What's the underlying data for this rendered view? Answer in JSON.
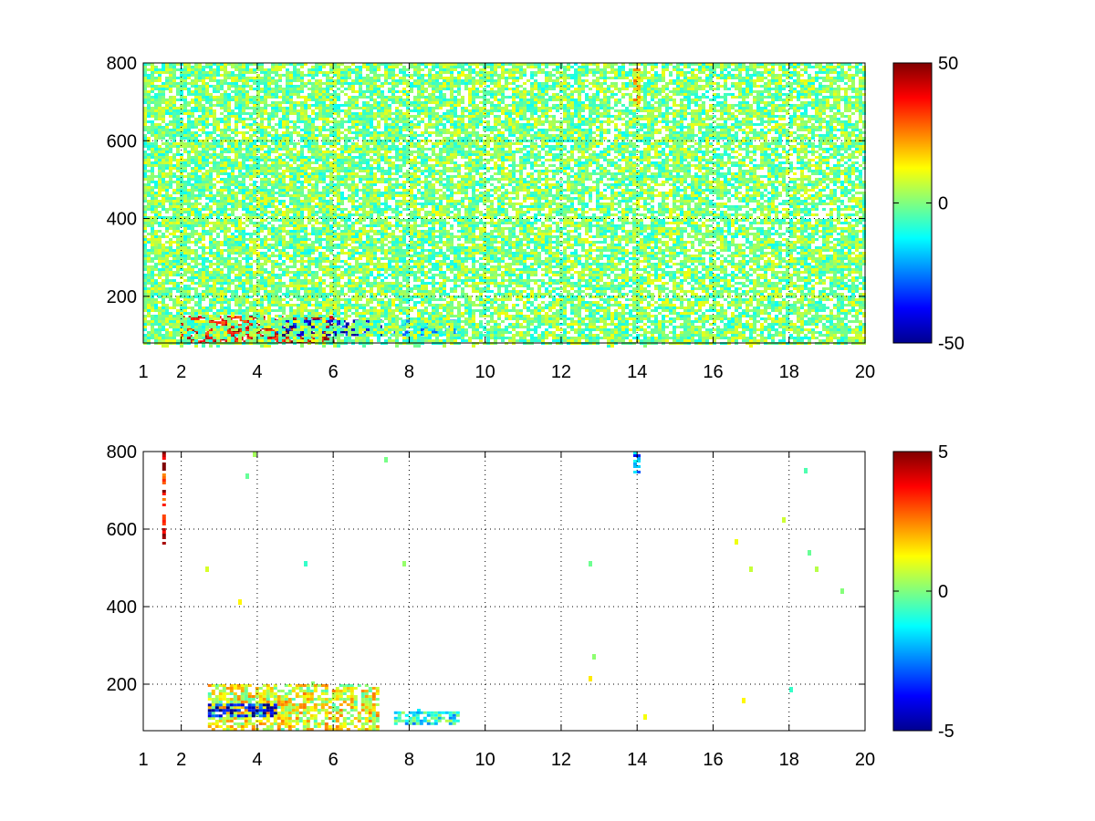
{
  "chart_data": [
    {
      "type": "heatmap",
      "title": "",
      "xlabel": "",
      "ylabel": "",
      "xlim": [
        1,
        20
      ],
      "ylim": [
        80,
        800
      ],
      "x_ticks": [
        1,
        2,
        4,
        6,
        8,
        10,
        12,
        14,
        16,
        18,
        20
      ],
      "y_ticks": [
        200,
        400,
        600,
        800
      ],
      "grid": true,
      "colormap": "jet",
      "colorbar": {
        "min": -50,
        "max": 50,
        "ticks": [
          50,
          0,
          -50
        ]
      },
      "features": [
        {
          "description": "strong positive band",
          "x_range": [
            2,
            6
          ],
          "y_range": [
            80,
            150
          ],
          "value": 40
        },
        {
          "description": "negative band",
          "x_range": [
            4.5,
            7.2
          ],
          "y_range": [
            100,
            140
          ],
          "value": -40
        },
        {
          "description": "negative patch",
          "x_range": [
            7.5,
            9.3
          ],
          "y_range": [
            100,
            140
          ],
          "value": -20
        },
        {
          "description": "scattered weak values",
          "x_range": [
            1,
            20
          ],
          "y_range": [
            80,
            800
          ],
          "value": 0
        },
        {
          "description": "vertical streak",
          "x_range": [
            13.9,
            14.05
          ],
          "y_range": [
            690,
            800
          ],
          "value": 15
        }
      ]
    },
    {
      "type": "heatmap",
      "title": "",
      "xlabel": "",
      "ylabel": "",
      "xlim": [
        1,
        20
      ],
      "ylim": [
        80,
        800
      ],
      "x_ticks": [
        1,
        2,
        4,
        6,
        8,
        10,
        12,
        14,
        16,
        18,
        20
      ],
      "y_ticks": [
        200,
        400,
        600,
        800
      ],
      "grid": true,
      "colormap": "jet",
      "colorbar": {
        "min": -5,
        "max": 5,
        "ticks": [
          5,
          0,
          -5
        ]
      },
      "features": [
        {
          "description": "mixed values band",
          "x_range": [
            2.7,
            7.2
          ],
          "y_range": [
            80,
            200
          ],
          "value": 1
        },
        {
          "description": "negative streak",
          "x_range": [
            2.7,
            4.5
          ],
          "y_range": [
            120,
            150
          ],
          "value": -4
        },
        {
          "description": "light patch",
          "x_range": [
            7.6,
            9.3
          ],
          "y_range": [
            100,
            130
          ],
          "value": -1
        },
        {
          "description": "thin vertical line",
          "x_range": [
            1.5,
            1.55
          ],
          "y_range": [
            560,
            800
          ],
          "value": 4
        },
        {
          "description": "small cyan mark",
          "x_range": [
            13.9,
            14.05
          ],
          "y_range": [
            750,
            800
          ],
          "value": -2
        }
      ]
    }
  ]
}
